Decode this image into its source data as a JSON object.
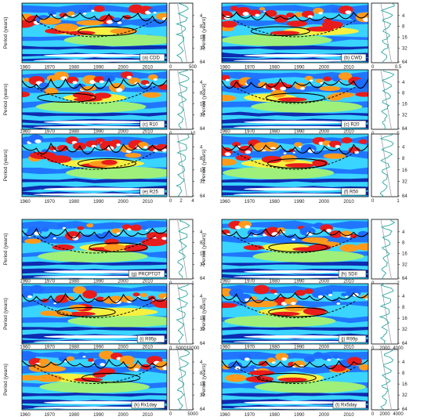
{
  "figure": {
    "colors": {
      "levels": [
        "#0a1aa8",
        "#1e6cff",
        "#39d4ff",
        "#9ef07a",
        "#f7f040",
        "#ff9a1c",
        "#e81c1c",
        "#ffffff"
      ],
      "cone": "#000000",
      "outline": "#000000",
      "spectrum_line": "#2aa7a0",
      "significance_line": "#9aa0a8"
    },
    "y_axis_label": "Period (years)",
    "period_ticks": [
      "4",
      "8",
      "16",
      "32",
      "64"
    ],
    "year_ticks": [
      "1960",
      "1970",
      "1980",
      "1990",
      "2000",
      "2010"
    ]
  },
  "chart_data": [
    {
      "type": "heatmap",
      "label": "(a) CDD",
      "xlabel": "",
      "ylabel": "Period (years)",
      "xlim": [
        1960,
        2016
      ],
      "period_ticks": [
        4,
        8,
        16,
        32,
        64
      ],
      "spectrum_ticks": [
        "0",
        "500"
      ]
    },
    {
      "type": "heatmap",
      "label": "(b) CWD",
      "xlabel": "",
      "ylabel": "Period (years)",
      "xlim": [
        1960,
        2016
      ],
      "period_ticks": [
        4,
        8,
        16,
        32,
        64
      ],
      "spectrum_ticks": [
        "0",
        "0.5"
      ]
    },
    {
      "type": "heatmap",
      "label": "(c) R10",
      "xlabel": "",
      "ylabel": "Period (years)",
      "xlim": [
        1960,
        2016
      ],
      "period_ticks": [
        4,
        8,
        16,
        32,
        64
      ],
      "spectrum_ticks": [
        "0",
        "10"
      ]
    },
    {
      "type": "heatmap",
      "label": "(c) R20",
      "xlabel": "",
      "ylabel": "Period (years)",
      "xlim": [
        1960,
        2016
      ],
      "period_ticks": [
        4,
        8,
        16,
        32,
        64
      ],
      "spectrum_ticks": [
        "0",
        "5"
      ]
    },
    {
      "type": "heatmap",
      "label": "(e) R25",
      "xlabel": "",
      "ylabel": "Period (years)",
      "xlim": [
        1960,
        2016
      ],
      "period_ticks": [
        4,
        8,
        16,
        32,
        64
      ],
      "spectrum_ticks": [
        "0",
        "2",
        "4"
      ]
    },
    {
      "type": "heatmap",
      "label": "(f) R50",
      "xlabel": "",
      "ylabel": "Period (years)",
      "xlim": [
        1960,
        2016
      ],
      "period_ticks": [
        4,
        8,
        16,
        32,
        64
      ],
      "spectrum_ticks": [
        "0",
        "1"
      ]
    },
    {
      "type": "heatmap",
      "label": "(g) PRCPTOT",
      "xlabel": "",
      "ylabel": "Period (years)",
      "xlim": [
        1960,
        2016
      ],
      "period_ticks": [
        4,
        8,
        16,
        32,
        64
      ],
      "spectrum_ticks": [
        "0",
        "1"
      ]
    },
    {
      "type": "heatmap",
      "label": "(h) SDII",
      "xlabel": "",
      "ylabel": "Period (years)",
      "xlim": [
        1960,
        2016
      ],
      "period_ticks": [
        4,
        8,
        16,
        32,
        64
      ],
      "spectrum_ticks": [
        "0",
        "2"
      ]
    },
    {
      "type": "heatmap",
      "label": "(i) R95p",
      "xlabel": "",
      "ylabel": "Period (years)",
      "xlim": [
        1960,
        2016
      ],
      "period_ticks": [
        4,
        8,
        16,
        32,
        64
      ],
      "spectrum_ticks": [
        "0",
        "5000",
        "10000"
      ]
    },
    {
      "type": "heatmap",
      "label": "(j) R99p",
      "xlabel": "",
      "ylabel": "Period (years)",
      "xlim": [
        1960,
        2016
      ],
      "period_ticks": [
        4,
        8,
        16,
        32,
        64
      ],
      "spectrum_ticks": [
        "0",
        "2000",
        "4000"
      ]
    },
    {
      "type": "heatmap",
      "label": "(k) Rx1day",
      "xlabel": "",
      "ylabel": "Period (years)",
      "xlim": [
        1960,
        2016
      ],
      "period_ticks": [
        4,
        8,
        16,
        32,
        64
      ],
      "spectrum_ticks": [
        "0",
        "5000"
      ]
    },
    {
      "type": "heatmap",
      "label": "(l) Rx5day",
      "xlabel": "",
      "ylabel": "Period (years)",
      "xlim": [
        1960,
        2016
      ],
      "period_ticks": [
        4,
        8,
        16,
        32,
        64
      ],
      "spectrum_ticks": [
        "0",
        "2000",
        "4000"
      ]
    }
  ]
}
